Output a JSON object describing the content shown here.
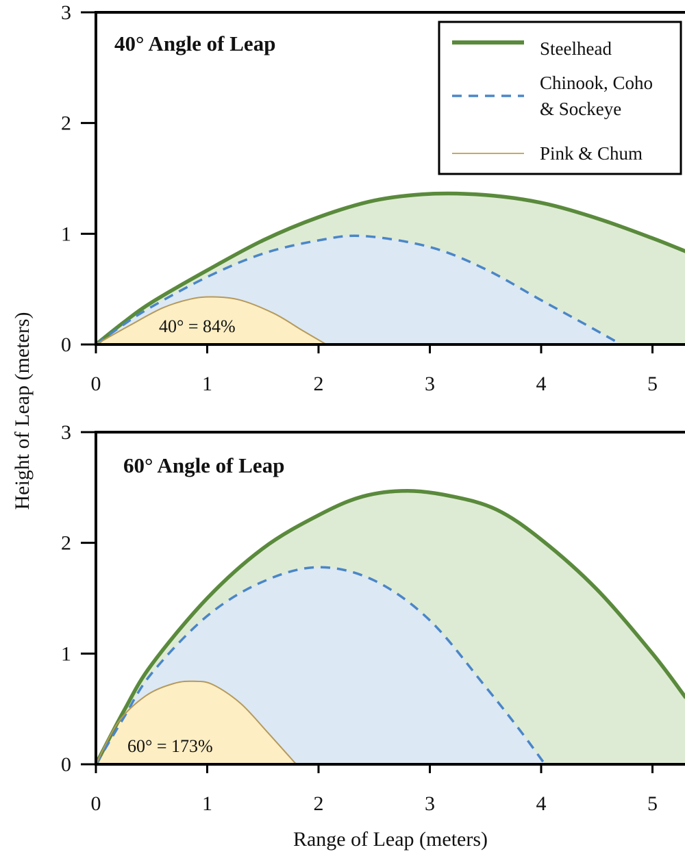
{
  "chart_data": {
    "type": "area",
    "xlabel": "Range of Leap (meters)",
    "ylabel": "Height of Leap (meters)",
    "xlim": [
      0,
      5.3
    ],
    "ylim": [
      0,
      3
    ],
    "xticks": [
      0,
      1,
      2,
      3,
      4,
      5
    ],
    "yticks": [
      0,
      1,
      2,
      3
    ],
    "grid": false,
    "legend": {
      "placement": "top-right of upper panel",
      "entries": [
        {
          "label": "Steelhead",
          "style": "solid-thick",
          "color": "#5a8a3c"
        },
        {
          "label": "Chinook, Coho\n& Sockeye",
          "style": "dashed",
          "color": "#4a86c8"
        },
        {
          "label": "Pink & Chum",
          "style": "solid-thin",
          "color": "#c8a860"
        }
      ]
    },
    "colors": {
      "steelhead_line": "#5a8a3c",
      "steelhead_fill": "#deebd4",
      "chinook_line": "#4a86c8",
      "chinook_fill": "#dce8f4",
      "pink_line": "#b69a5a",
      "pink_fill": "#fdeec4"
    },
    "panels": [
      {
        "title": "40°  Angle of Leap",
        "annotation": "40° = 84%",
        "series": [
          {
            "name": "Steelhead",
            "x": [
              0,
              0.25,
              0.5,
              1,
              1.5,
              2,
              2.5,
              3,
              3.5,
              4,
              4.5,
              5,
              5.3
            ],
            "y": [
              0,
              0.2,
              0.38,
              0.67,
              0.94,
              1.15,
              1.3,
              1.36,
              1.35,
              1.28,
              1.14,
              0.96,
              0.84
            ]
          },
          {
            "name": "Chinook, Coho\n& Sockeye",
            "x": [
              0,
              0.25,
              0.5,
              1,
              1.5,
              2,
              2.4,
              3,
              3.5,
              4,
              4.4,
              4.72
            ],
            "y": [
              0,
              0.18,
              0.34,
              0.61,
              0.82,
              0.94,
              0.98,
              0.88,
              0.68,
              0.4,
              0.18,
              0
            ]
          },
          {
            "name": "Pink & Chum",
            "x": [
              0,
              0.3,
              0.6,
              0.85,
              1.05,
              1.3,
              1.6,
              1.85,
              2.07
            ],
            "y": [
              0,
              0.17,
              0.33,
              0.41,
              0.43,
              0.4,
              0.28,
              0.13,
              0
            ]
          }
        ]
      },
      {
        "title": "60°  Angle of Leap",
        "annotation": "60° = 173%",
        "series": [
          {
            "name": "Steelhead",
            "x": [
              0,
              0.25,
              0.5,
              1,
              1.5,
              2,
              2.4,
              2.8,
              3.2,
              3.6,
              4,
              4.5,
              5,
              5.3
            ],
            "y": [
              0,
              0.48,
              0.9,
              1.5,
              1.95,
              2.25,
              2.42,
              2.47,
              2.42,
              2.3,
              2.03,
              1.58,
              1.0,
              0.6
            ]
          },
          {
            "name": "Chinook, Coho\n& Sockeye",
            "x": [
              0,
              0.25,
              0.5,
              1,
              1.5,
              2,
              2.5,
              3,
              3.5,
              3.8,
              4.02
            ],
            "y": [
              0,
              0.42,
              0.82,
              1.34,
              1.65,
              1.78,
              1.66,
              1.3,
              0.7,
              0.32,
              0.02
            ]
          },
          {
            "name": "Pink & Chum",
            "x": [
              0,
              0.2,
              0.45,
              0.7,
              0.88,
              1.05,
              1.3,
              1.55,
              1.8
            ],
            "y": [
              0,
              0.38,
              0.62,
              0.73,
              0.75,
              0.72,
              0.55,
              0.28,
              0
            ]
          }
        ]
      }
    ]
  }
}
